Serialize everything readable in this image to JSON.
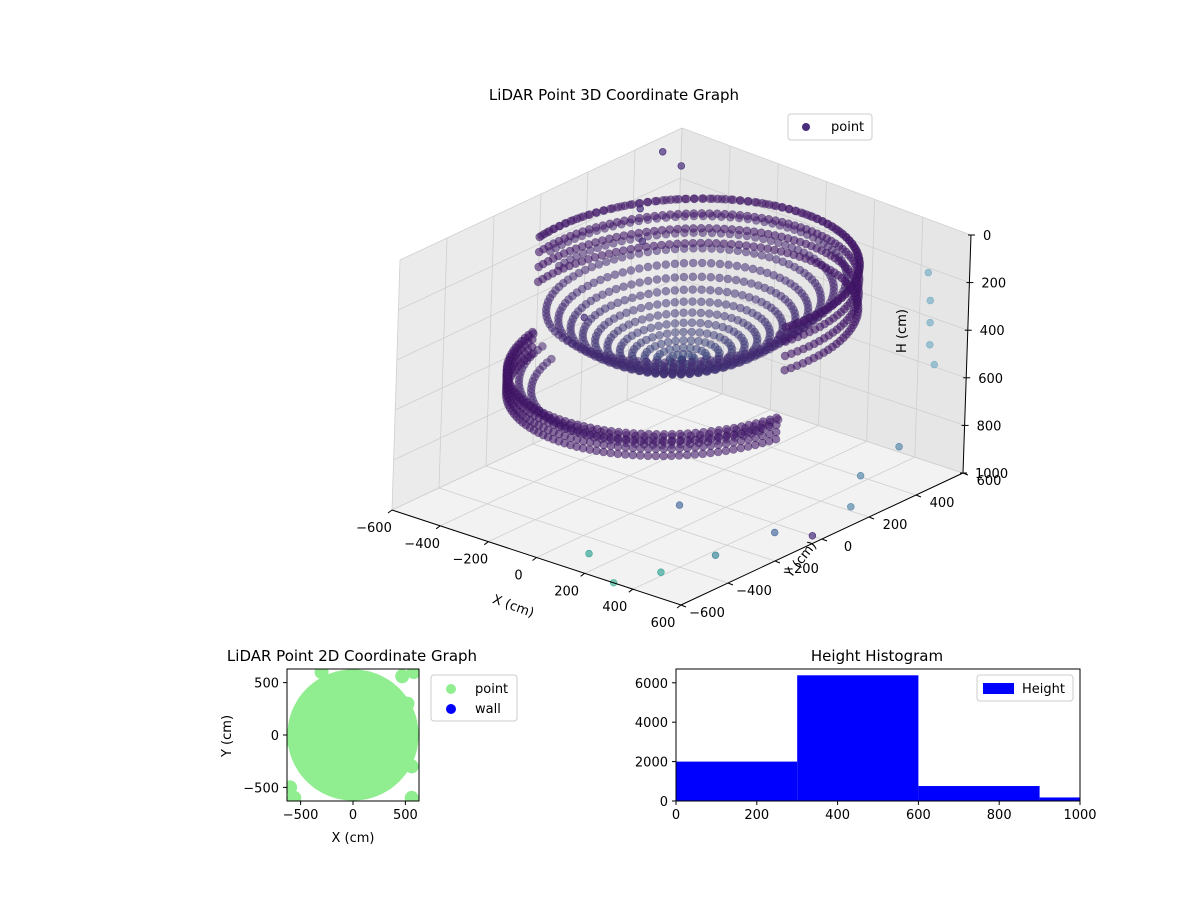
{
  "figure": {
    "chart_data": [
      {
        "type": "scatter",
        "title": "LiDAR Point 3D Coordinate Graph",
        "xlabel": "X (cm)",
        "ylabel": "Y (cm)",
        "zlabel": "H (cm)",
        "xlim": [
          -600,
          600
        ],
        "ylim": [
          -600,
          600
        ],
        "zlim": [
          1000,
          0
        ],
        "x_ticks": [
          -600,
          -400,
          -200,
          0,
          200,
          400,
          600
        ],
        "y_ticks": [
          -600,
          -400,
          -200,
          0,
          200,
          400,
          600
        ],
        "z_ticks": [
          0,
          200,
          400,
          600,
          800,
          1000
        ],
        "grid": true,
        "legend": {
          "placement": "top-right",
          "entries": [
            {
              "label": "point",
              "color": "#472d7b"
            }
          ]
        },
        "colormap": "viridis",
        "dome": {
          "description_values": {
            "center_height": 460,
            "rim_height": 100,
            "lower_rim_height": 560,
            "radius": 520
          }
        },
        "outliers": [
          {
            "x": -600,
            "y": 520,
            "h": 60,
            "c": "#472d7b"
          },
          {
            "x": -560,
            "y": 560,
            "h": 120,
            "c": "#472d7b"
          },
          {
            "x": -590,
            "y": 420,
            "h": 240,
            "c": "#472d7b"
          },
          {
            "x": -520,
            "y": 360,
            "h": 320,
            "c": "#472d7b"
          },
          {
            "x": -520,
            "y": 120,
            "h": 520,
            "c": "#472d7b"
          },
          {
            "x": 430,
            "y": 600,
            "h": 220,
            "c": "#7ab0c8"
          },
          {
            "x": 480,
            "y": 560,
            "h": 300,
            "c": "#7ab0c8"
          },
          {
            "x": 520,
            "y": 520,
            "h": 360,
            "c": "#7ab0c8"
          },
          {
            "x": 560,
            "y": 480,
            "h": 420,
            "c": "#7ab0c8"
          },
          {
            "x": 600,
            "y": 460,
            "h": 480,
            "c": "#7ab0c8"
          },
          {
            "x": 600,
            "y": 320,
            "h": 760,
            "c": "#5b8bac"
          },
          {
            "x": 560,
            "y": 200,
            "h": 840,
            "c": "#5b8bac"
          },
          {
            "x": 600,
            "y": 120,
            "h": 920,
            "c": "#5b8bac"
          },
          {
            "x": 500,
            "y": -100,
            "h": 960,
            "c": "#4d6fa0"
          },
          {
            "x": 450,
            "y": -300,
            "h": 980,
            "c": "#3e8a9c"
          },
          {
            "x": 380,
            "y": -460,
            "h": 1000,
            "c": "#3aa69a"
          },
          {
            "x": 320,
            "y": -600,
            "h": 1000,
            "c": "#4bb59a"
          },
          {
            "x": 560,
            "y": 0,
            "h": 1000,
            "c": "#472d7b"
          },
          {
            "x": 200,
            "y": -200,
            "h": 900,
            "c": "#4d6fa0"
          },
          {
            "x": 120,
            "y": -500,
            "h": 990,
            "c": "#3aa69a"
          }
        ]
      },
      {
        "type": "scatter",
        "title": "LiDAR Point 2D Coordinate Graph",
        "xlabel": "X (cm)",
        "ylabel": "Y (cm)",
        "xlim": [
          -630,
          630
        ],
        "ylim": [
          -630,
          630
        ],
        "x_ticks": [
          -500,
          0,
          500
        ],
        "y_ticks": [
          -500,
          0,
          500
        ],
        "legend": {
          "placement": "outside-right",
          "entries": [
            {
              "label": "point",
              "color": "#90ee90"
            },
            {
              "label": "wall",
              "color": "#0000ff"
            }
          ]
        },
        "point_cloud_extent": {
          "radius_cm": 560,
          "x_range": [
            -630,
            580
          ],
          "y_range": [
            -630,
            600
          ]
        }
      },
      {
        "type": "bar",
        "title": "Height Histogram",
        "xlim": [
          0,
          1000
        ],
        "ylim": [
          0,
          6700
        ],
        "x_ticks": [
          0,
          200,
          400,
          600,
          800,
          1000
        ],
        "y_ticks": [
          0,
          2000,
          4000,
          6000
        ],
        "bins": [
          {
            "start": 0,
            "end": 300,
            "count": 2000
          },
          {
            "start": 300,
            "end": 600,
            "count": 6380
          },
          {
            "start": 600,
            "end": 900,
            "count": 760
          },
          {
            "start": 900,
            "end": 1000,
            "count": 180
          }
        ],
        "color": "#0000ff",
        "legend": {
          "placement": "top-right",
          "entries": [
            {
              "label": "Height",
              "color": "#0000ff"
            }
          ]
        }
      }
    ]
  }
}
